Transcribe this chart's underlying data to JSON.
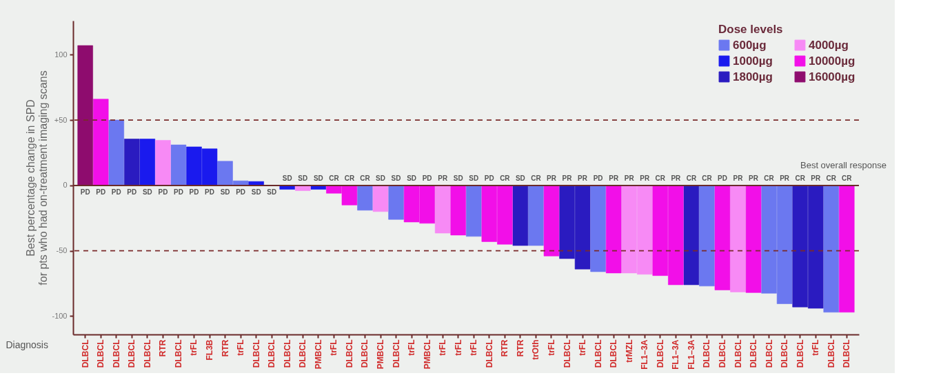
{
  "chart_data": {
    "type": "bar",
    "xlabel": "Diagnosis",
    "ylabel": "Best percentage change in SPD\nfor pts who had on-treatment imaging scans",
    "legend_title": "Dose levels",
    "legend": "top right",
    "annotations": [
      "Best overall response"
    ],
    "categories": [
      "DLBCL",
      "DLBCL",
      "DLBCL",
      "DLBCL",
      "DLBCL",
      "RTR",
      "DLBCL",
      "trFL",
      "FL3B",
      "RTR",
      "trFL",
      "DLBCL",
      "DLBCL",
      "DLBCL",
      "DLBCL",
      "PMBCL",
      "trFL",
      "DLBCL",
      "DLBCL",
      "PMBCL",
      "DLBCL",
      "trFL",
      "PMBCL",
      "trFL",
      "trFL",
      "trFL",
      "DLBCL",
      "RTR",
      "RTR",
      "trOth",
      "trFL",
      "DLBCL",
      "trFL",
      "DLBCL",
      "DLBCL",
      "trMZL",
      "FL1–3A",
      "DLBCL",
      "FL1–3A",
      "FL1–3A",
      "DLBCL",
      "DLBCL",
      "DLBCL",
      "DLBCL",
      "DLBCL",
      "DLBCL",
      "DLBCL",
      "trFL",
      "DLBCL",
      "DLBCL"
    ],
    "ylim": [
      -114,
      126
    ],
    "yticks": [
      -100,
      {
        "value": -50,
        "label": "-50"
      },
      0,
      {
        "value": 50,
        "label": "+50"
      },
      100
    ],
    "ref_lines": [
      {
        "axis": "y",
        "value": 0,
        "color": "#6a2a2a",
        "line_style": "solid"
      },
      {
        "axis": "y",
        "value": 50,
        "color": "#7a2a2a",
        "line_style": "dashed"
      },
      {
        "axis": "y",
        "value": -50,
        "color": "#7a2a2a",
        "line_style": "dashed"
      }
    ],
    "series": [
      {
        "name": "600µg",
        "color": "#6b78f0",
        "values": [
          null,
          null,
          50,
          null,
          null,
          null,
          31,
          null,
          null,
          18.5,
          3.5,
          null,
          null,
          null,
          null,
          null,
          null,
          null,
          -19,
          null,
          -26,
          null,
          null,
          null,
          null,
          -39,
          null,
          null,
          null,
          -46,
          null,
          null,
          null,
          -66,
          null,
          null,
          null,
          null,
          null,
          null,
          -77,
          null,
          null,
          null,
          -82.5,
          -90.5,
          null,
          null,
          -97,
          null
        ],
        "value_labels": [
          null,
          null,
          "PD",
          null,
          null,
          null,
          "PD",
          null,
          null,
          "SD",
          "PD",
          null,
          null,
          null,
          null,
          null,
          null,
          null,
          "CR",
          null,
          "SD",
          null,
          null,
          null,
          null,
          "SD",
          null,
          null,
          null,
          "CR",
          null,
          null,
          null,
          "PD",
          null,
          null,
          null,
          null,
          null,
          null,
          "CR",
          null,
          null,
          null,
          "CR",
          "PR",
          null,
          null,
          "CR",
          null
        ]
      },
      {
        "name": "1000µg",
        "color": "#1a1aee",
        "values": [
          null,
          null,
          null,
          null,
          35.5,
          null,
          null,
          29.5,
          28,
          null,
          null,
          3,
          0,
          -3,
          null,
          -3,
          null,
          null,
          null,
          null,
          null,
          null,
          null,
          null,
          null,
          null,
          null,
          null,
          null,
          null,
          null,
          null,
          null,
          null,
          null,
          null,
          null,
          null,
          null,
          null,
          null,
          null,
          null,
          null,
          null,
          null,
          null,
          null,
          null,
          null
        ],
        "value_labels": [
          null,
          null,
          null,
          null,
          "SD",
          null,
          null,
          "PD",
          "PD",
          null,
          null,
          "SD",
          "SD",
          "SD",
          null,
          "SD",
          null,
          null,
          null,
          null,
          null,
          null,
          null,
          null,
          null,
          null,
          null,
          null,
          null,
          null,
          null,
          null,
          null,
          null,
          null,
          null,
          null,
          null,
          null,
          null,
          null,
          null,
          null,
          null,
          null,
          null,
          null,
          null,
          null,
          null
        ]
      },
      {
        "name": "1800µg",
        "color": "#2a1bc0",
        "values": [
          null,
          null,
          null,
          35.5,
          null,
          null,
          null,
          null,
          null,
          null,
          null,
          null,
          null,
          null,
          null,
          null,
          null,
          null,
          null,
          null,
          null,
          null,
          null,
          null,
          null,
          null,
          null,
          null,
          -46,
          null,
          null,
          -56,
          -64,
          null,
          null,
          null,
          null,
          null,
          null,
          -76,
          null,
          null,
          null,
          null,
          null,
          null,
          -93,
          -94,
          null,
          null
        ],
        "value_labels": [
          null,
          null,
          null,
          "PD",
          null,
          null,
          null,
          null,
          null,
          null,
          null,
          null,
          null,
          null,
          null,
          null,
          null,
          null,
          null,
          null,
          null,
          null,
          null,
          null,
          null,
          null,
          null,
          null,
          "SD",
          null,
          null,
          "PR",
          "PR",
          null,
          null,
          null,
          null,
          null,
          null,
          "CR",
          null,
          null,
          null,
          null,
          null,
          null,
          "CR",
          "PR",
          null,
          null
        ]
      },
      {
        "name": "4000µg",
        "color": "#f78af5",
        "values": [
          null,
          null,
          null,
          null,
          null,
          34.5,
          null,
          null,
          null,
          null,
          null,
          null,
          null,
          null,
          -4,
          null,
          null,
          null,
          null,
          -20,
          null,
          null,
          null,
          -36.5,
          null,
          null,
          null,
          null,
          null,
          null,
          null,
          null,
          null,
          null,
          null,
          -67,
          -68,
          null,
          null,
          null,
          null,
          null,
          -81.5,
          null,
          null,
          null,
          null,
          null,
          null,
          null
        ],
        "value_labels": [
          null,
          null,
          null,
          null,
          null,
          "PD",
          null,
          null,
          null,
          null,
          null,
          null,
          null,
          null,
          "SD",
          null,
          null,
          null,
          null,
          "SD",
          null,
          null,
          null,
          "PR",
          null,
          null,
          null,
          null,
          null,
          null,
          null,
          null,
          null,
          null,
          null,
          "PR",
          "PR",
          null,
          null,
          null,
          null,
          null,
          "PR",
          null,
          null,
          null,
          null,
          null,
          null,
          null
        ]
      },
      {
        "name": "10000µg",
        "color": "#f20fe8",
        "values": [
          null,
          66,
          null,
          null,
          null,
          null,
          null,
          null,
          null,
          null,
          null,
          null,
          null,
          null,
          null,
          null,
          -6,
          -15,
          null,
          null,
          null,
          -28,
          -29,
          null,
          -38,
          null,
          -43,
          -45,
          null,
          null,
          -54,
          null,
          null,
          null,
          -67,
          null,
          null,
          -69,
          -76,
          null,
          null,
          -80,
          null,
          -82,
          null,
          null,
          null,
          null,
          null,
          -97
        ],
        "value_labels": [
          null,
          "PD",
          null,
          null,
          null,
          null,
          null,
          null,
          null,
          null,
          null,
          null,
          null,
          null,
          null,
          null,
          "CR",
          "CR",
          null,
          null,
          null,
          "SD",
          "PD",
          null,
          "SD",
          null,
          "PD",
          "CR",
          null,
          null,
          "PR",
          null,
          null,
          null,
          "PR",
          null,
          null,
          "CR",
          "PR",
          null,
          null,
          "PD",
          null,
          "PR",
          null,
          null,
          null,
          null,
          null,
          "CR"
        ]
      },
      {
        "name": "16000µg",
        "color": "#8e0c6e",
        "values": [
          107,
          null,
          null,
          null,
          null,
          null,
          null,
          null,
          null,
          null,
          null,
          null,
          null,
          null,
          null,
          null,
          null,
          null,
          null,
          null,
          null,
          null,
          null,
          null,
          null,
          null,
          null,
          null,
          null,
          null,
          null,
          null,
          null,
          null,
          null,
          null,
          null,
          null,
          null,
          null,
          null,
          null,
          null,
          null,
          null,
          null,
          null,
          null,
          null,
          null
        ],
        "value_labels": [
          "PD",
          null,
          null,
          null,
          null,
          null,
          null,
          null,
          null,
          null,
          null,
          null,
          null,
          null,
          null,
          null,
          null,
          null,
          null,
          null,
          null,
          null,
          null,
          null,
          null,
          null,
          null,
          null,
          null,
          null,
          null,
          null,
          null,
          null,
          null,
          null,
          null,
          null,
          null,
          null,
          null,
          null,
          null,
          null,
          null,
          null,
          null,
          null,
          null,
          null
        ]
      }
    ]
  }
}
